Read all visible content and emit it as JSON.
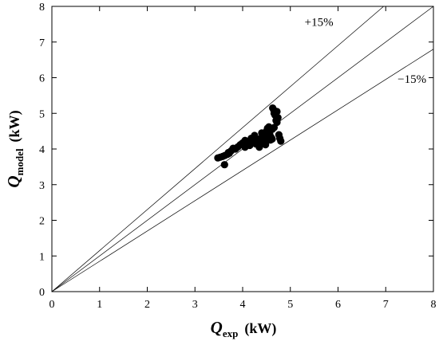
{
  "chart_data": {
    "type": "scatter",
    "title": "",
    "xlabel": {
      "main": "Q",
      "sub": "exp",
      "unit": "(kW)"
    },
    "ylabel": {
      "main": "Q",
      "sub": "model",
      "unit": "(kW)"
    },
    "xlim": [
      0,
      8
    ],
    "ylim": [
      0,
      8
    ],
    "xticks": [
      "0",
      "1",
      "2",
      "3",
      "4",
      "5",
      "6",
      "7",
      "8"
    ],
    "yticks": [
      "0",
      "1",
      "2",
      "3",
      "4",
      "5",
      "6",
      "7",
      "8"
    ],
    "grid": false,
    "reference_lines": [
      {
        "label": "+15%",
        "slope": 1.15
      },
      {
        "label": "",
        "slope": 1.0
      },
      {
        "label": "−15%",
        "slope": 0.85
      }
    ],
    "points": [
      [
        3.48,
        3.75
      ],
      [
        3.53,
        3.77
      ],
      [
        3.58,
        3.79
      ],
      [
        3.63,
        3.82
      ],
      [
        3.68,
        3.85
      ],
      [
        3.72,
        3.88
      ],
      [
        3.76,
        3.95
      ],
      [
        3.8,
        4.02
      ],
      [
        3.85,
        4.0
      ],
      [
        3.9,
        4.06
      ],
      [
        3.95,
        4.12
      ],
      [
        4.0,
        4.17
      ],
      [
        4.05,
        4.24
      ],
      [
        4.1,
        4.15
      ],
      [
        4.15,
        4.1
      ],
      [
        4.18,
        4.3
      ],
      [
        4.22,
        4.25
      ],
      [
        4.25,
        4.38
      ],
      [
        4.28,
        4.14
      ],
      [
        4.32,
        4.22
      ],
      [
        4.35,
        4.05
      ],
      [
        4.38,
        4.3
      ],
      [
        4.42,
        4.18
      ],
      [
        4.45,
        4.35
      ],
      [
        4.48,
        4.28
      ],
      [
        4.5,
        4.5
      ],
      [
        4.52,
        4.58
      ],
      [
        4.55,
        4.62
      ],
      [
        4.57,
        4.4
      ],
      [
        4.58,
        4.25
      ],
      [
        4.6,
        4.32
      ],
      [
        4.62,
        4.55
      ],
      [
        4.63,
        5.15
      ],
      [
        4.65,
        5.1
      ],
      [
        4.66,
        5.0
      ],
      [
        4.68,
        4.95
      ],
      [
        4.7,
        4.8
      ],
      [
        4.72,
        5.05
      ],
      [
        4.74,
        4.88
      ],
      [
        4.76,
        4.4
      ],
      [
        4.78,
        4.3
      ],
      [
        4.8,
        4.22
      ],
      [
        4.62,
        4.28
      ],
      [
        4.48,
        4.12
      ],
      [
        3.62,
        3.56
      ],
      [
        3.7,
        3.9
      ],
      [
        4.05,
        4.05
      ],
      [
        4.4,
        4.45
      ],
      [
        4.72,
        4.75
      ],
      [
        4.66,
        4.6
      ]
    ]
  }
}
